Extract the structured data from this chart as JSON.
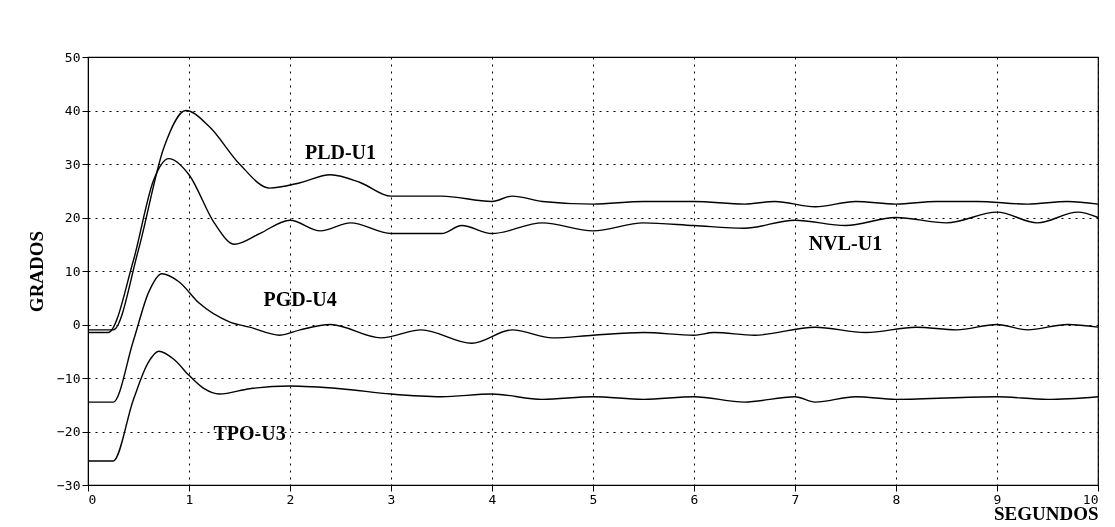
{
  "chart_data": {
    "type": "line",
    "xlabel": "SEGUNDOS",
    "ylabel": "GRADOS",
    "xlim": [
      0,
      10
    ],
    "ylim": [
      -30,
      50
    ],
    "xticks": [
      0,
      1,
      2,
      3,
      4,
      5,
      6,
      7,
      8,
      9,
      10
    ],
    "yticks": [
      -30,
      -20,
      -10,
      0,
      10,
      20,
      30,
      40,
      50
    ],
    "grid": true,
    "legend": false,
    "marker": "none",
    "line_style": "solid",
    "series": [
      {
        "name": "PLD-U1",
        "color": "#000000",
        "x": [
          0,
          0.25,
          0.5,
          0.75,
          0.97,
          1.2,
          1.5,
          1.8,
          2.1,
          2.4,
          2.7,
          3.0,
          3.5,
          4.0,
          4.2,
          4.5,
          5.0,
          5.5,
          6.0,
          6.5,
          6.8,
          7.2,
          7.6,
          8.0,
          8.4,
          8.8,
          9.3,
          9.7,
          10
        ],
        "values": [
          -1,
          -1,
          14,
          33,
          40,
          37,
          30,
          25.5,
          26.5,
          28,
          26.5,
          24,
          24,
          23,
          24,
          23,
          22.5,
          23,
          23,
          22.5,
          23,
          22,
          23,
          22.5,
          23,
          23,
          22.5,
          23,
          22.5
        ]
      },
      {
        "name": "NVL-U1",
        "color": "#000000",
        "x": [
          0,
          0.2,
          0.45,
          0.65,
          0.8,
          1.0,
          1.25,
          1.45,
          1.7,
          2.0,
          2.3,
          2.6,
          3.0,
          3.5,
          3.7,
          4.0,
          4.5,
          5.0,
          5.5,
          6.0,
          6.5,
          7.0,
          7.5,
          8.0,
          8.5,
          9.0,
          9.4,
          9.8,
          10
        ],
        "values": [
          -1.5,
          -1.5,
          12,
          27,
          31,
          28,
          19,
          15,
          17,
          19.5,
          17.5,
          19,
          17,
          17,
          18.5,
          17,
          19,
          17.5,
          19,
          18.5,
          18,
          19.5,
          18.5,
          20,
          19,
          21,
          19,
          21,
          20
        ]
      },
      {
        "name": "PGD-U4",
        "color": "#000000",
        "x": [
          0,
          0.25,
          0.45,
          0.6,
          0.73,
          0.9,
          1.1,
          1.4,
          1.6,
          1.9,
          2.1,
          2.4,
          2.9,
          3.3,
          3.8,
          4.2,
          4.6,
          5.0,
          5.5,
          6.0,
          6.2,
          6.6,
          7.2,
          7.7,
          8.2,
          8.6,
          9.0,
          9.3,
          9.7,
          10
        ],
        "values": [
          -14.5,
          -14.5,
          -3,
          6,
          9.5,
          8,
          4,
          0.5,
          -0.5,
          -2,
          -1,
          0,
          -2.5,
          -1,
          -3.5,
          -1,
          -2.5,
          -2,
          -1.5,
          -2,
          -1.5,
          -2,
          -0.5,
          -1.5,
          -0.5,
          -1,
          0,
          -1,
          0,
          -0.5
        ]
      },
      {
        "name": "TPO-U3",
        "color": "#000000",
        "x": [
          0,
          0.25,
          0.45,
          0.6,
          0.7,
          0.85,
          1.0,
          1.15,
          1.3,
          1.6,
          2.0,
          2.5,
          3.0,
          3.5,
          4.0,
          4.5,
          5.0,
          5.5,
          6.0,
          6.5,
          7.0,
          7.2,
          7.6,
          8.0,
          9.0,
          9.5,
          10
        ],
        "values": [
          -25.5,
          -25.5,
          -14,
          -7,
          -5,
          -6.5,
          -9.5,
          -12,
          -13,
          -12,
          -11.5,
          -12,
          -13,
          -13.5,
          -13,
          -14,
          -13.5,
          -14,
          -13.5,
          -14.5,
          -13.5,
          -14.5,
          -13.5,
          -14,
          -13.5,
          -14,
          -13.5
        ]
      }
    ]
  }
}
